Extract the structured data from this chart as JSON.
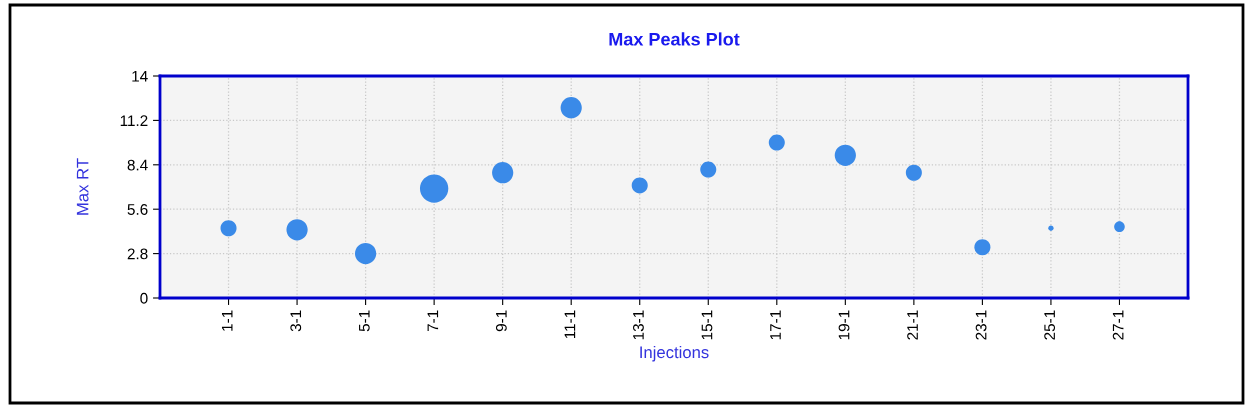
{
  "chart_data": {
    "type": "bubble",
    "title": "Max Peaks Plot",
    "xlabel": "Injections",
    "ylabel": "Max RT",
    "categories": [
      "1-1",
      "3-1",
      "5-1",
      "7-1",
      "9-1",
      "11-1",
      "13-1",
      "15-1",
      "17-1",
      "19-1",
      "21-1",
      "23-1",
      "25-1",
      "27-1"
    ],
    "values": [
      4.4,
      4.3,
      2.8,
      6.9,
      7.9,
      12.0,
      7.1,
      8.1,
      9.8,
      9.0,
      7.9,
      3.2,
      4.4,
      4.5
    ],
    "sizes": [
      0.32,
      0.56,
      0.56,
      1,
      0.56,
      0.56,
      0.32,
      0.32,
      0.32,
      0.56,
      0.32,
      0.32,
      0.035,
      0.14
    ],
    "color": "#3a8ae8",
    "ylim": [
      0,
      14
    ],
    "yticks": [
      0,
      2.8,
      5.6,
      8.4,
      11.2,
      14
    ],
    "grid": true
  }
}
